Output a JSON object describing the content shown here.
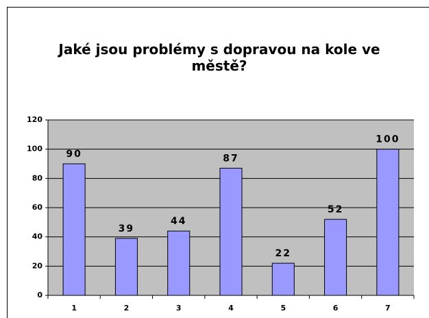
{
  "chart_data": {
    "type": "bar",
    "title": "Jaké jsou problémy s dopravou na kole ve městě?",
    "categories": [
      "1",
      "2",
      "3",
      "4",
      "5",
      "6",
      "7"
    ],
    "values": [
      90,
      39,
      44,
      87,
      22,
      52,
      100
    ],
    "color": "#9999ff",
    "ylim": [
      0,
      120
    ],
    "yticks": [
      0,
      20,
      40,
      60,
      80,
      100,
      120
    ],
    "grid": true
  }
}
